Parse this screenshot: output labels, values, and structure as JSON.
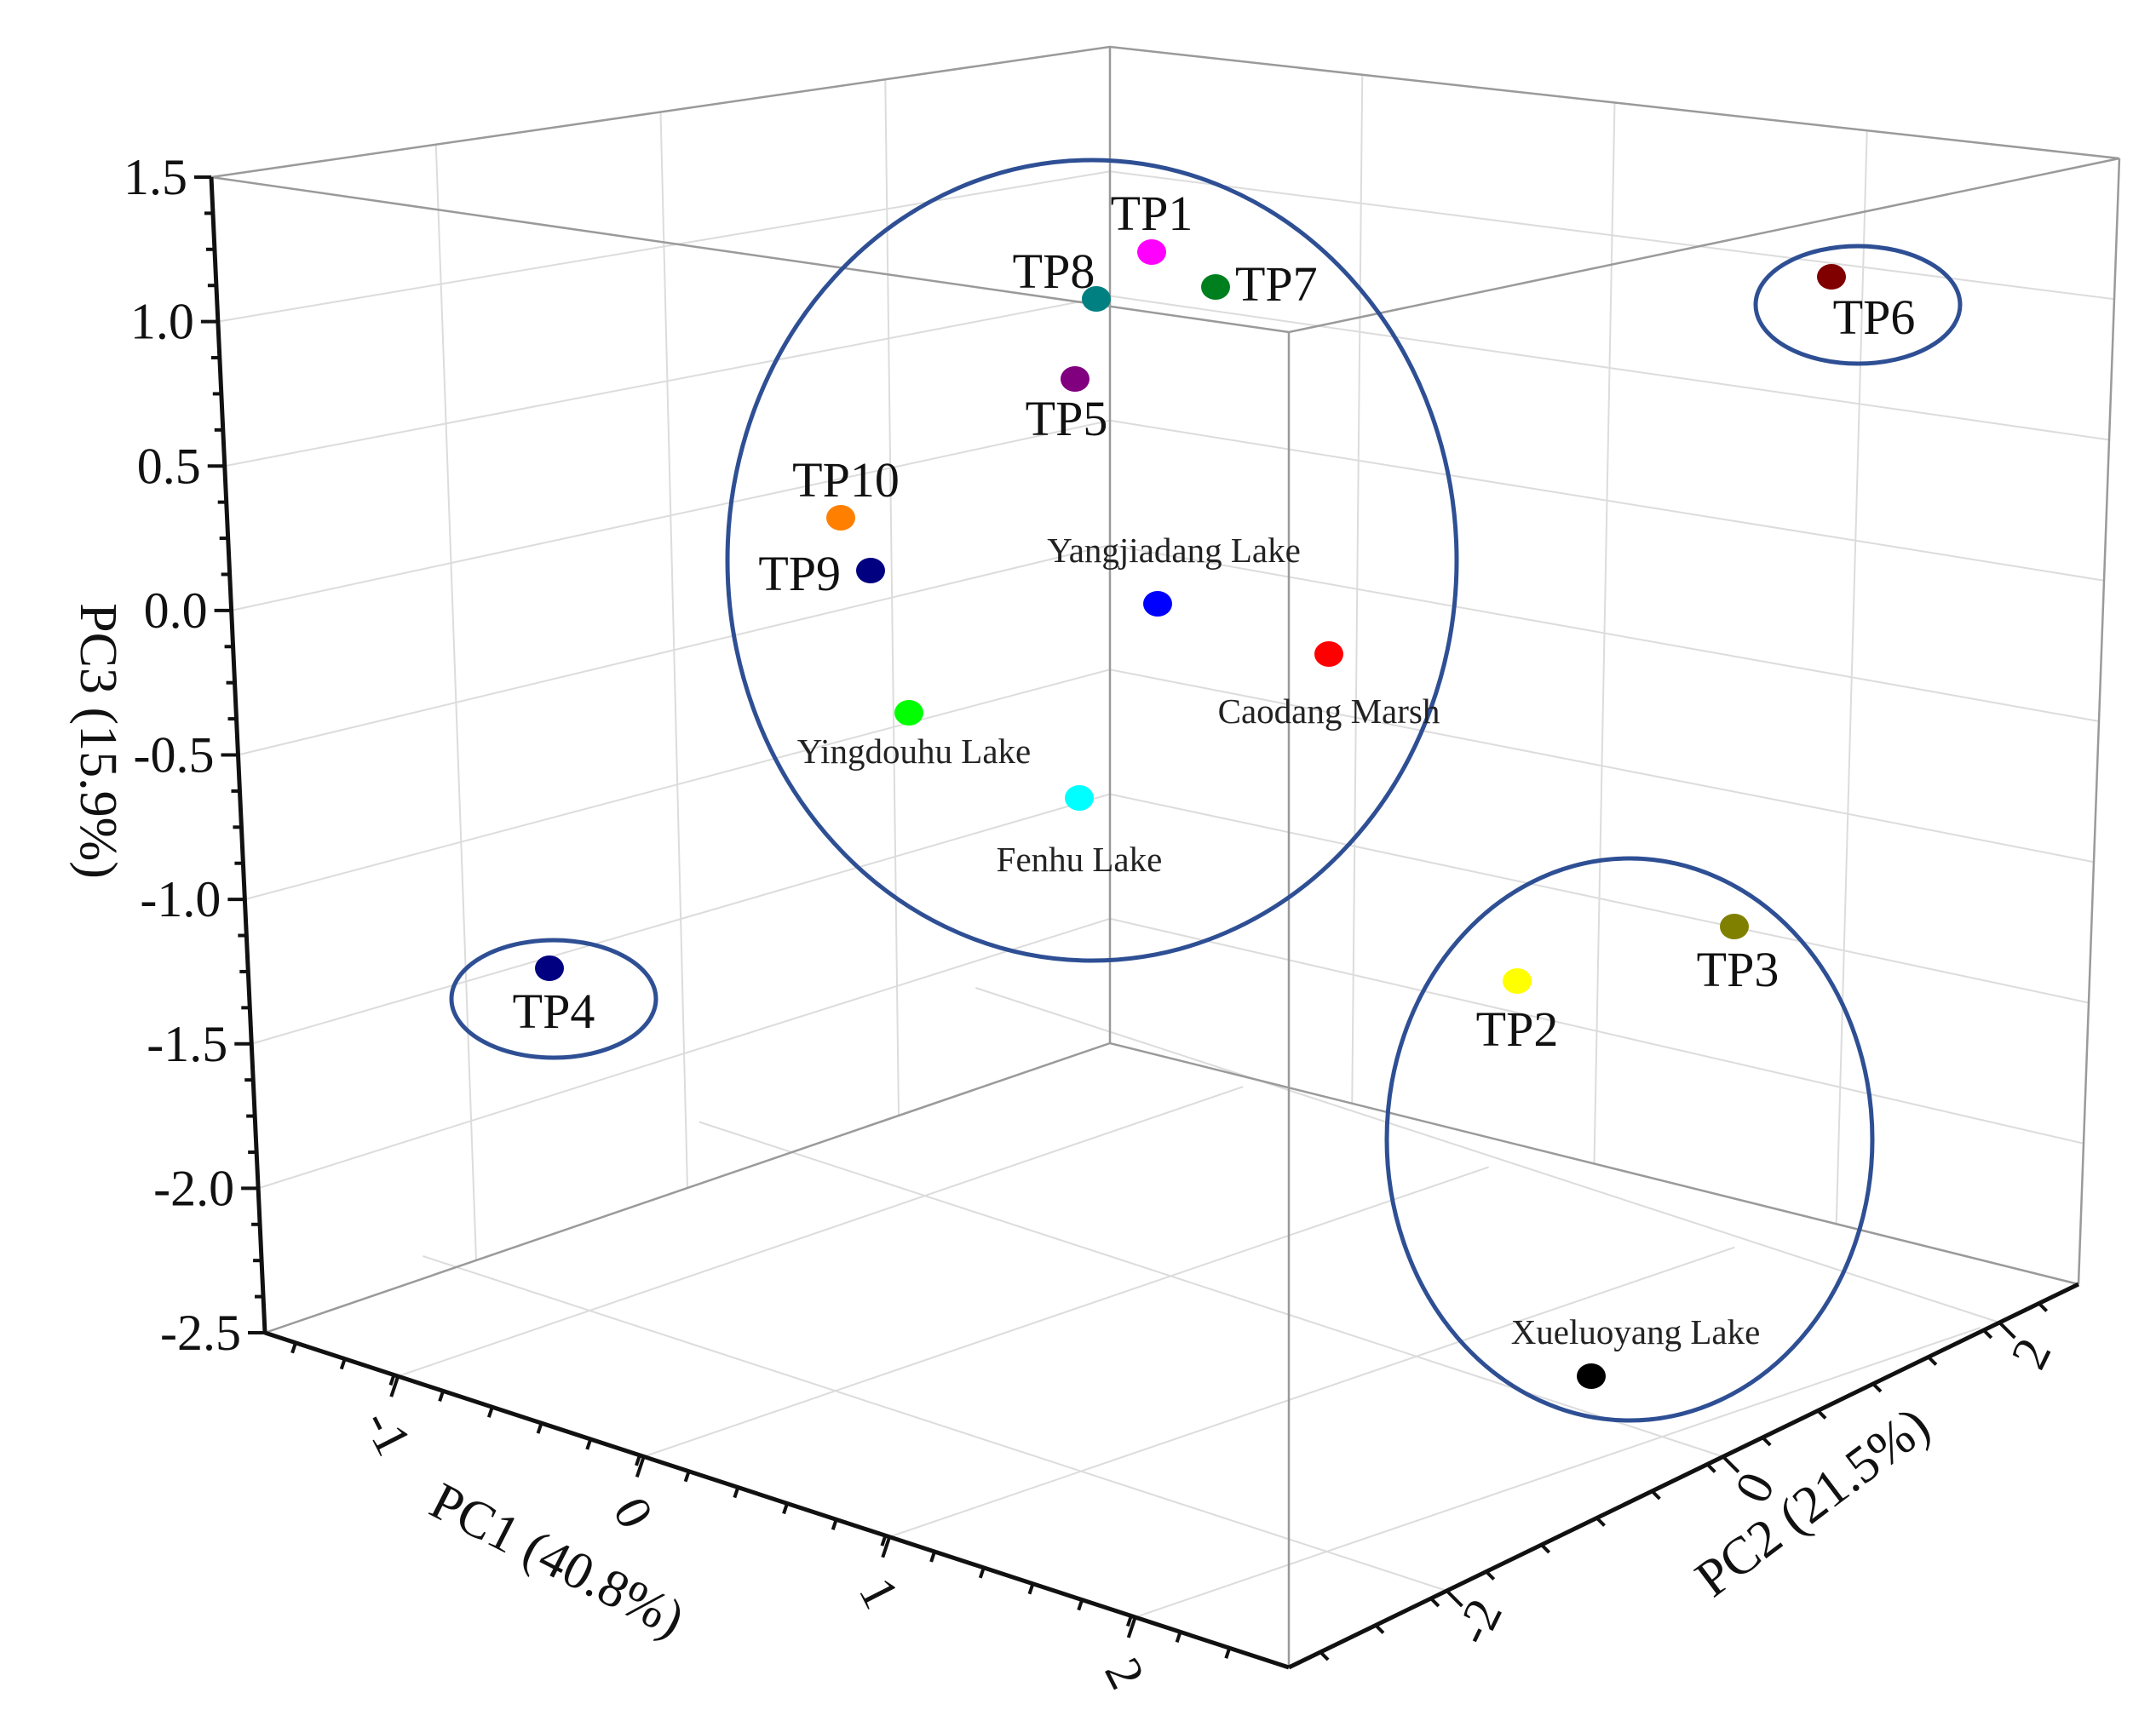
{
  "chart_data": {
    "type": "scatter",
    "projection": "3d",
    "axes": {
      "x": {
        "label": "PC1 (40.8%)",
        "range": [
          -2,
          2.5
        ],
        "ticks": [
          "-1",
          "0",
          "1",
          "2"
        ]
      },
      "y": {
        "label": "PC2 (21.5%)",
        "range": [
          -3,
          3
        ],
        "ticks": [
          "-2",
          "0",
          "2"
        ]
      },
      "z": {
        "label": "PC3 (15.9%)",
        "range": [
          -2.5,
          1.5
        ],
        "ticks": [
          "1.5",
          "1.0",
          "0.5",
          "0.0",
          "-0.5",
          "-1.0",
          "-1.5",
          "-2.0",
          "-2.5"
        ]
      }
    },
    "grid": true,
    "points": [
      {
        "name": "TP1",
        "color": "#ff00ff",
        "z": 1.25
      },
      {
        "name": "TP7",
        "color": "#007f1f",
        "z": 1.15
      },
      {
        "name": "TP8",
        "color": "#008080",
        "z": 1.1
      },
      {
        "name": "TP5",
        "color": "#800080",
        "z": 0.85
      },
      {
        "name": "TP10",
        "color": "#ff8000",
        "z": 0.38
      },
      {
        "name": "TP9",
        "color": "#000080",
        "z": 0.2
      },
      {
        "name": "Yangjiadang Lake",
        "color": "#0000ff",
        "z": 0.08
      },
      {
        "name": "Caodang Marsh",
        "color": "#ff0000",
        "z": -0.08
      },
      {
        "name": "Yingdouhu Lake",
        "color": "#00ff00",
        "z": -0.3
      },
      {
        "name": "Fenhu Lake",
        "color": "#00ffff",
        "z": -0.6
      },
      {
        "name": "TP6",
        "color": "#800000",
        "z": 1.2
      },
      {
        "name": "TP4",
        "color": "#000080",
        "z": -1.2
      },
      {
        "name": "TP3",
        "color": "#808000",
        "z": -1.05
      },
      {
        "name": "TP2",
        "color": "#ffff00",
        "z": -1.25
      },
      {
        "name": "Xueluoyang Lake",
        "color": "#000000",
        "z": -2.3
      }
    ],
    "clusters": [
      [
        "TP1",
        "TP7",
        "TP8",
        "TP5",
        "TP10",
        "TP9",
        "Yangjiadang Lake",
        "Caodang Marsh",
        "Yingdouhu Lake",
        "Fenhu Lake"
      ],
      [
        "TP6"
      ],
      [
        "TP4"
      ],
      [
        "TP2",
        "TP3",
        "Xueluoyang Lake"
      ]
    ]
  }
}
